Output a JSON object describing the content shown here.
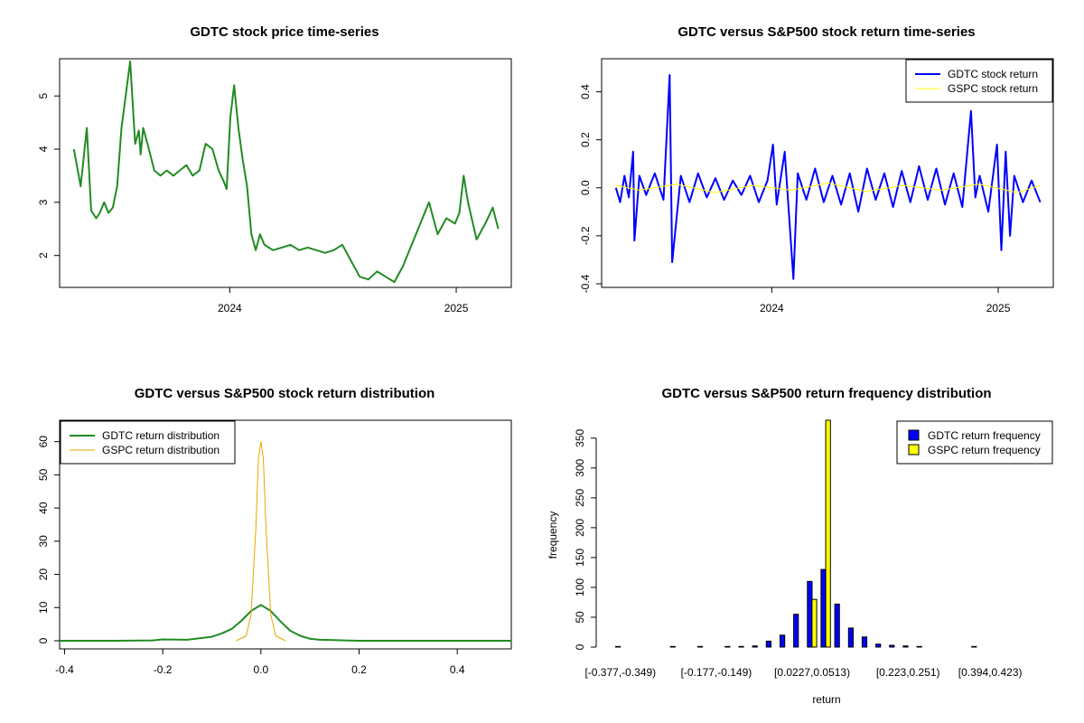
{
  "chart_data": [
    {
      "type": "line",
      "title": "GDTC stock price time-series",
      "xlabel": "",
      "ylabel": "",
      "x_ticks": [
        "2024",
        "2025"
      ],
      "y_ticks": [
        2,
        3,
        4,
        5
      ],
      "ylim": [
        1.4,
        5.7
      ],
      "xlim": [
        "2023-04-01",
        "2025-03-31"
      ],
      "color": "#228B22",
      "series": [
        {
          "x": [
            "2023-04-24",
            "2023-05-05",
            "2023-05-15",
            "2023-05-22",
            "2023-05-30",
            "2023-06-05",
            "2023-06-12",
            "2023-06-19",
            "2023-06-26",
            "2023-07-03",
            "2023-07-10",
            "2023-07-24",
            "2023-08-01",
            "2023-08-07",
            "2023-08-10",
            "2023-08-14",
            "2023-08-21",
            "2023-09-01",
            "2023-09-11",
            "2023-09-21",
            "2023-10-02",
            "2023-10-12",
            "2023-10-23",
            "2023-11-02",
            "2023-11-13",
            "2023-11-23",
            "2023-12-04",
            "2023-12-14",
            "2023-12-22",
            "2023-12-27",
            "2024-01-02",
            "2024-01-08",
            "2024-01-15",
            "2024-01-22",
            "2024-01-29",
            "2024-02-05",
            "2024-02-12",
            "2024-02-19",
            "2024-02-26",
            "2024-03-11",
            "2024-03-25",
            "2024-04-08",
            "2024-04-22",
            "2024-05-06",
            "2024-05-20",
            "2024-06-03",
            "2024-06-17",
            "2024-07-01",
            "2024-07-15",
            "2024-07-29",
            "2024-08-12",
            "2024-08-26",
            "2024-09-09",
            "2024-09-23",
            "2024-10-07",
            "2024-10-21",
            "2024-11-04",
            "2024-11-18",
            "2024-12-02",
            "2024-12-16",
            "2024-12-30",
            "2025-01-06",
            "2025-01-13",
            "2025-01-20",
            "2025-02-03",
            "2025-02-17",
            "2025-03-01",
            "2025-03-10"
          ],
          "y": [
            4.0,
            3.3,
            4.4,
            2.85,
            2.7,
            2.8,
            3.0,
            2.8,
            2.9,
            3.3,
            4.4,
            5.65,
            4.1,
            4.35,
            3.9,
            4.4,
            4.1,
            3.6,
            3.5,
            3.6,
            3.5,
            3.6,
            3.7,
            3.5,
            3.6,
            4.1,
            4.0,
            3.6,
            3.4,
            3.25,
            4.6,
            5.2,
            4.4,
            3.8,
            3.3,
            2.4,
            2.1,
            2.4,
            2.2,
            2.1,
            2.15,
            2.2,
            2.1,
            2.15,
            2.1,
            2.05,
            2.1,
            2.2,
            1.9,
            1.6,
            1.55,
            1.7,
            1.6,
            1.5,
            1.8,
            2.2,
            2.6,
            3.0,
            2.4,
            2.7,
            2.6,
            2.8,
            3.5,
            3.0,
            2.3,
            2.6,
            2.9,
            2.5
          ]
        }
      ]
    },
    {
      "type": "line",
      "title": "GDTC versus S&P500 stock return time-series",
      "xlabel": "",
      "ylabel": "",
      "x_ticks": [
        "2024",
        "2025"
      ],
      "y_ticks": [
        "-0.4",
        "-0.2",
        "0.0",
        "0.2",
        "0.4"
      ],
      "ylim": [
        -0.4,
        0.5
      ],
      "legend_position": "top-right",
      "series": [
        {
          "name": "GDTC stock return",
          "color": "#0000FF",
          "x": [
            "2023-04-24",
            "2023-05-01",
            "2023-05-08",
            "2023-05-15",
            "2023-05-22",
            "2023-05-24",
            "2023-06-01",
            "2023-06-12",
            "2023-06-26",
            "2023-07-10",
            "2023-07-20",
            "2023-07-24",
            "2023-08-07",
            "2023-08-21",
            "2023-09-04",
            "2023-09-18",
            "2023-10-02",
            "2023-10-16",
            "2023-10-30",
            "2023-11-13",
            "2023-11-27",
            "2023-12-11",
            "2023-12-25",
            "2024-01-03",
            "2024-01-09",
            "2024-01-22",
            "2024-02-05",
            "2024-02-12",
            "2024-02-26",
            "2024-03-11",
            "2024-03-25",
            "2024-04-08",
            "2024-04-22",
            "2024-05-06",
            "2024-05-20",
            "2024-06-03",
            "2024-06-17",
            "2024-07-01",
            "2024-07-15",
            "2024-07-29",
            "2024-08-12",
            "2024-08-26",
            "2024-09-09",
            "2024-09-23",
            "2024-10-07",
            "2024-10-21",
            "2024-11-04",
            "2024-11-18",
            "2024-11-25",
            "2024-12-02",
            "2024-12-16",
            "2024-12-30",
            "2025-01-06",
            "2025-01-13",
            "2025-01-20",
            "2025-01-27",
            "2025-02-10",
            "2025-02-24",
            "2025-03-10"
          ],
          "y": [
            0.0,
            -0.06,
            0.05,
            -0.04,
            0.15,
            -0.22,
            0.05,
            -0.03,
            0.06,
            -0.05,
            0.47,
            -0.31,
            0.05,
            -0.06,
            0.06,
            -0.04,
            0.04,
            -0.05,
            0.03,
            -0.03,
            0.05,
            -0.06,
            0.03,
            0.18,
            -0.07,
            0.15,
            -0.38,
            0.06,
            -0.05,
            0.08,
            -0.06,
            0.05,
            -0.07,
            0.06,
            -0.1,
            0.08,
            -0.05,
            0.06,
            -0.08,
            0.07,
            -0.06,
            0.09,
            -0.05,
            0.08,
            -0.07,
            0.06,
            -0.08,
            0.32,
            -0.04,
            0.05,
            -0.1,
            0.18,
            -0.26,
            0.15,
            -0.2,
            0.05,
            -0.06,
            0.03,
            -0.06
          ]
        },
        {
          "name": "GSPC stock return",
          "color": "#FFFF00",
          "x": [
            "2023-04-24",
            "2023-06-01",
            "2023-08-01",
            "2023-10-01",
            "2023-12-01",
            "2024-02-01",
            "2024-04-01",
            "2024-06-01",
            "2024-08-01",
            "2024-10-01",
            "2024-12-01",
            "2025-02-01",
            "2025-03-10"
          ],
          "y": [
            0.01,
            -0.01,
            0.015,
            -0.02,
            0.01,
            -0.01,
            0.02,
            -0.015,
            0.01,
            -0.01,
            0.015,
            -0.02,
            0.01
          ]
        }
      ]
    },
    {
      "type": "line",
      "title": "GDTC versus S&P500 stock return distribution",
      "xlabel": "",
      "ylabel": "",
      "x_ticks": [
        "-0.4",
        "-0.2",
        "0.0",
        "0.2",
        "0.4"
      ],
      "y_ticks": [
        0,
        10,
        20,
        30,
        40,
        50,
        60
      ],
      "xlim": [
        -0.41,
        0.51
      ],
      "ylim": [
        0,
        64
      ],
      "legend_position": "top-left",
      "series": [
        {
          "name": "GDTC return distribution",
          "color": "#228B22",
          "x": [
            -0.41,
            -0.3,
            -0.22,
            -0.2,
            -0.15,
            -0.1,
            -0.08,
            -0.06,
            -0.04,
            -0.02,
            0.0,
            0.02,
            0.04,
            0.06,
            0.08,
            0.1,
            0.12,
            0.15,
            0.2,
            0.3,
            0.51
          ],
          "y": [
            0,
            0,
            0.1,
            0.4,
            0.3,
            1.2,
            2.2,
            3.5,
            6.0,
            9.0,
            10.8,
            9.0,
            5.8,
            3.0,
            1.5,
            0.6,
            0.3,
            0.2,
            0.0,
            0,
            0
          ]
        },
        {
          "name": "GSPC return distribution",
          "color": "#E6A800",
          "x": [
            -0.05,
            -0.03,
            -0.02,
            -0.01,
            -0.005,
            0.0,
            0.005,
            0.01,
            0.02,
            0.03,
            0.05
          ],
          "y": [
            0,
            1.5,
            8,
            35,
            55,
            60,
            55,
            35,
            8,
            1.5,
            0
          ]
        }
      ]
    },
    {
      "type": "bar",
      "title": "GDTC versus S&P500 return frequency distribution",
      "xlabel": "return",
      "ylabel": "frequency",
      "category_labels": [
        "[-0.377,-0.349)",
        "[-0.177,-0.149)",
        "[0.0227,0.0513)",
        "[0.223,0.251)",
        "[0.394,0.423)"
      ],
      "y_ticks": [
        0,
        50,
        100,
        150,
        200,
        250,
        300,
        350
      ],
      "ylim": [
        0,
        380
      ],
      "legend_position": "top-right",
      "series": [
        {
          "name": "GDTC return frequency",
          "color": "#0000FF",
          "values": [
            1,
            0,
            0,
            0,
            1,
            0,
            1,
            0,
            1,
            1,
            2,
            10,
            20,
            55,
            110,
            130,
            72,
            32,
            17,
            5,
            3,
            2,
            1,
            0,
            0,
            0,
            1,
            0,
            0,
            0,
            0
          ]
        },
        {
          "name": "GSPC return frequency",
          "color": "#FFFF00",
          "values": [
            0,
            0,
            0,
            0,
            0,
            0,
            0,
            0,
            0,
            0,
            0,
            0,
            0,
            0,
            80,
            380,
            0,
            0,
            0,
            0,
            0,
            0,
            0,
            0,
            0,
            0,
            0,
            0,
            0,
            0,
            0
          ]
        }
      ]
    }
  ]
}
